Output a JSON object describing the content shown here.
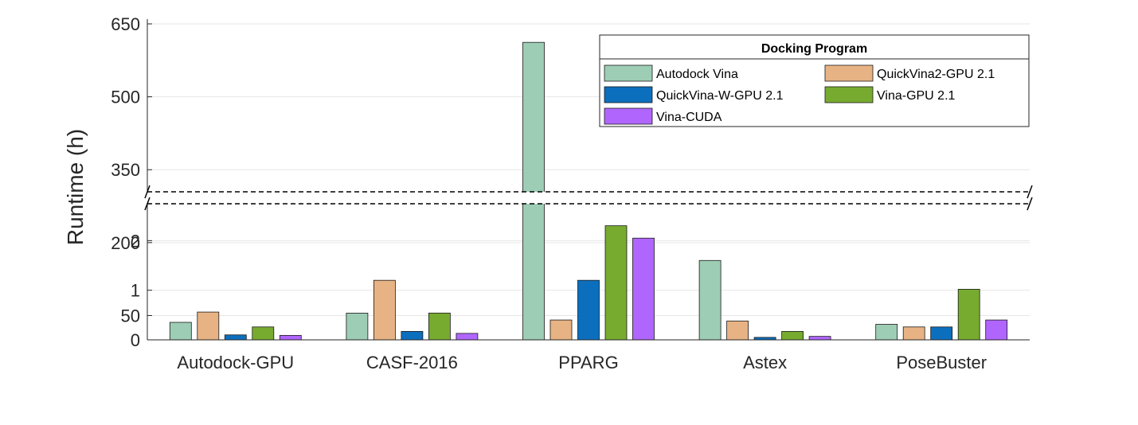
{
  "chart_data": {
    "type": "bar",
    "title": "",
    "xlabel": "",
    "ylabel": "Runtime (h)",
    "categories": [
      "Autodock-GPU",
      "CASF-2016",
      "PPARG",
      "Astex",
      "PoseBuster"
    ],
    "broken_axis": true,
    "y_ticks_lower": [
      "0",
      "1",
      "2"
    ],
    "y_ticks_upper": [
      "50",
      "200",
      "350",
      "500",
      "650"
    ],
    "ylim_lower": [
      0,
      3
    ],
    "ylim_upper": [
      0,
      650
    ],
    "grid": true,
    "legend": {
      "title": "Docking Program",
      "placement": "top-right",
      "columns": 2
    },
    "series": [
      {
        "name": "Autodock Vina",
        "color": "#9dcdb5",
        "values": [
          36,
          55,
          612,
          1.6,
          32
        ]
      },
      {
        "name": "QuickVina2-GPU 2.1",
        "color": "#e8b384",
        "values": [
          0.56,
          1.2,
          0.4,
          0.38,
          0.26
        ]
      },
      {
        "name": "QuickVina-W-GPU 2.1",
        "color": "#0c6fbe",
        "values": [
          0.1,
          0.17,
          1.2,
          0.05,
          0.26
        ]
      },
      {
        "name": "Vina-GPU 2.1",
        "color": "#77ab2f",
        "values": [
          0.26,
          0.54,
          2.3,
          0.17,
          1.02
        ]
      },
      {
        "name": "Vina-CUDA",
        "color": "#b066fd",
        "values": [
          0.09,
          0.13,
          2.05,
          0.07,
          0.4
        ]
      }
    ]
  }
}
